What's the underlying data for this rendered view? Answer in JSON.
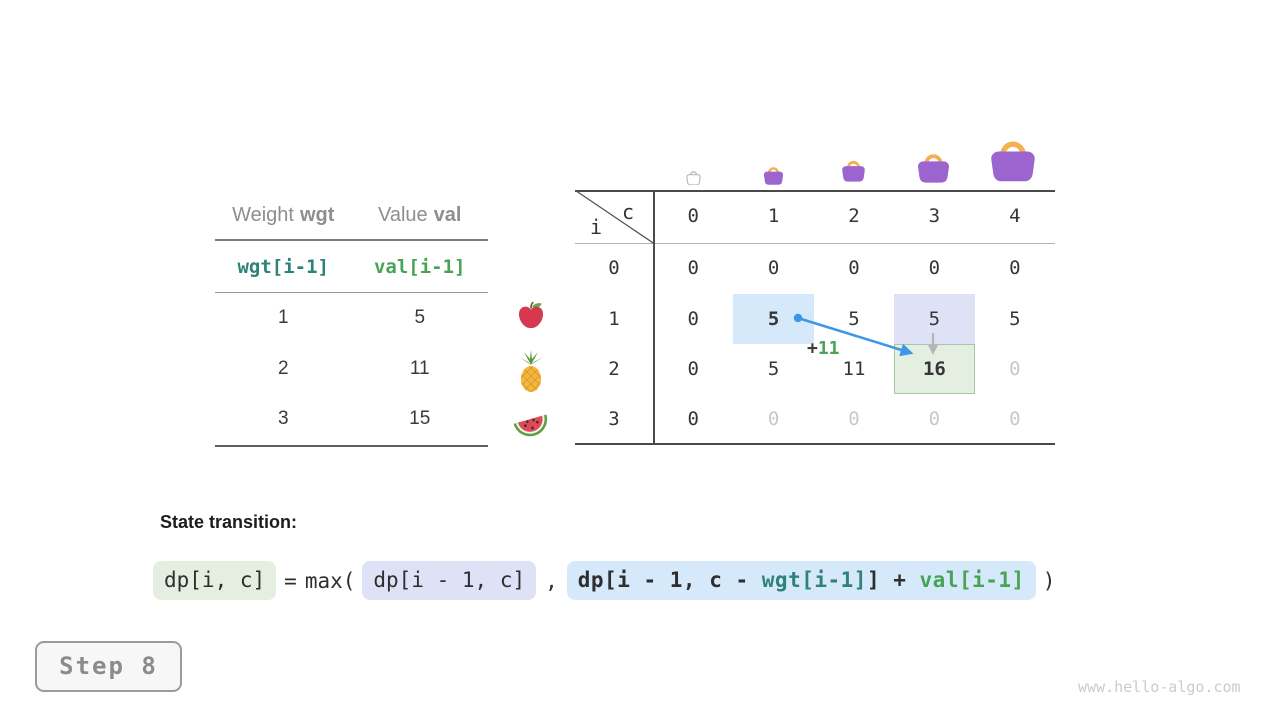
{
  "items_table": {
    "col1_label": "Weight",
    "col1_code": "wgt",
    "col2_label": "Value",
    "col2_code": "val",
    "index_weight": "wgt[i-1]",
    "index_value": "val[i-1]",
    "rows": [
      {
        "weight": "1",
        "value": "5",
        "fruit": "apple"
      },
      {
        "weight": "2",
        "value": "11",
        "fruit": "pineapple"
      },
      {
        "weight": "3",
        "value": "15",
        "fruit": "watermelon"
      }
    ]
  },
  "dp_table": {
    "corner_col": "c",
    "corner_row": "i",
    "col_headers": [
      "0",
      "1",
      "2",
      "3",
      "4"
    ],
    "row_headers": [
      "0",
      "1",
      "2",
      "3"
    ],
    "cells": [
      [
        "0",
        "0",
        "0",
        "0",
        "0"
      ],
      [
        "0",
        "5",
        "5",
        "5",
        "5"
      ],
      [
        "0",
        "5",
        "11",
        "16",
        "0"
      ],
      [
        "0",
        "0",
        "0",
        "0",
        "0"
      ]
    ],
    "bags": [
      "capacity-0-bag",
      "capacity-1-bag",
      "capacity-2-bag",
      "capacity-3-bag",
      "capacity-4-bag"
    ]
  },
  "annotation": {
    "plus_sign": "+",
    "plus_value": "11"
  },
  "transition": {
    "heading": "State transition:",
    "lhs": "dp[i, c]",
    "equals": "=",
    "max_open": "max(",
    "option1": "dp[i - 1, c]",
    "comma": ",",
    "option2_prefix": "dp[i - 1, c - ",
    "option2_wgt": "wgt[i-1]",
    "option2_bracket": "]",
    "option2_plus": " + ",
    "option2_val": "val[i-1]",
    "close_paren": ")"
  },
  "step": {
    "label": "Step 8"
  },
  "watermark": "www.hello-algo.com",
  "colors": {
    "teal": "#2f8279",
    "green": "#47a457",
    "blue_arrow": "#3d97e8",
    "hl_blue": "#d6e9fb",
    "hl_lavender": "#dfe2f7",
    "hl_green": "#e4efe2",
    "hl_green_border": "#a6c9a2",
    "bag_purple": "#9c64cf",
    "bag_handle": "#f3b04c"
  }
}
